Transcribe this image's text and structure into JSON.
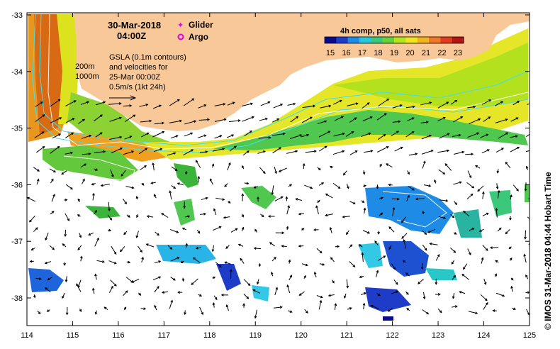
{
  "map": {
    "date": "30-Mar-2018",
    "time": "04:00Z",
    "legend": {
      "glider": "Glider",
      "argo": "Argo",
      "glider_color": "#e000e0",
      "argo_color": "#e000e0"
    },
    "gsla_note": [
      "GSLA (0.1m contours)",
      "and velocities for",
      "25-Mar 00:00Z",
      "0.5m/s (1kt 24h)"
    ],
    "isobaths": [
      "200m",
      "1000m"
    ],
    "colorbar": {
      "title": "4h comp, p50, all sats",
      "ticks": [
        "15",
        "16",
        "17",
        "18",
        "19",
        "20",
        "21",
        "22",
        "23"
      ],
      "colors": [
        "#0a0a8c",
        "#1e3cc8",
        "#1e8ce6",
        "#28c8dc",
        "#3cc87a",
        "#64d23c",
        "#b4e61e",
        "#f0e61e",
        "#f5b41e",
        "#f07828",
        "#e63c1e",
        "#b41414"
      ]
    },
    "x_ticks": [
      "114",
      "115",
      "116",
      "117",
      "118",
      "119",
      "120",
      "121",
      "122",
      "123",
      "124",
      "125"
    ],
    "y_ticks": [
      "-33",
      "-34",
      "-35",
      "-36",
      "-37",
      "-38"
    ],
    "credit": "© IMOS 31-Mar-2018 04:44 Hobart Time",
    "land_color": "#f8c898"
  }
}
